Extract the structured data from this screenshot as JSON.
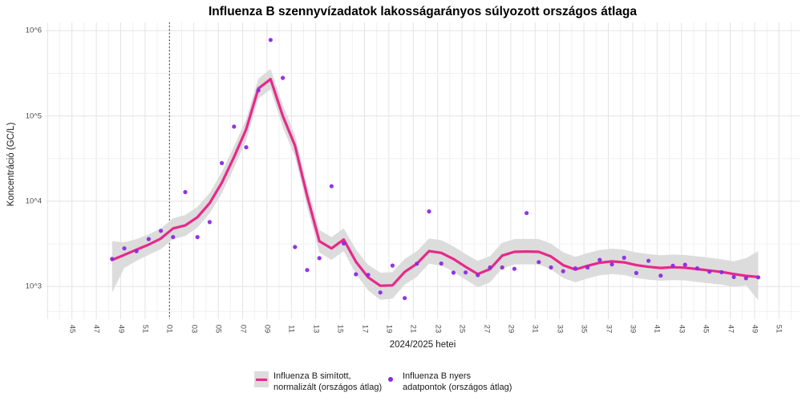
{
  "title": {
    "text": "Influenza B szennyvízadatok lakosságarányos súlyozott országos átlaga"
  },
  "axes": {
    "y_title": "Koncentráció (GC/L)",
    "x_title": "2024/2025 hetei",
    "y_tick_labels": [
      "10^6",
      "10^5",
      "10^4",
      "10^3"
    ],
    "x_tick_labels": [
      "45",
      "47",
      "49",
      "51",
      "01",
      "03",
      "05",
      "07",
      "09",
      "11",
      "13",
      "15",
      "17",
      "19",
      "21",
      "23",
      "25",
      "27",
      "29",
      "31",
      "33",
      "35",
      "37",
      "39",
      "41",
      "43",
      "45",
      "47",
      "49",
      "51"
    ]
  },
  "legend": {
    "smoothed": {
      "label": "Influenza B simított,\n normalizált (országos átlag)"
    },
    "raw": {
      "label": "Influenza B nyers\n adatpontok (országos átlag)"
    }
  },
  "colors": {
    "smoothed_line": "#E7298A",
    "ribbon": "#DCDCDC",
    "raw_point": "#8A2BE2",
    "grid_major": "#E3E3E3",
    "grid_minor": "#F0F0F0",
    "season_marker": "#111111",
    "axis_text": "#4d4d4d"
  },
  "chart_data": {
    "type": "line",
    "subtype": "smoothed line with confidence ribbon and raw scatter points",
    "y_scale": "log10",
    "ylim": [
      500,
      1100000
    ],
    "grid": "on",
    "legend_position": "bottom",
    "season_marker_week": "2025-W01",
    "xlabel": "2024/2025 hetei",
    "ylabel": "Koncentráció (GC/L)",
    "weeks": [
      "2024-W48",
      "2024-W49",
      "2024-W50",
      "2024-W51",
      "2024-W52",
      "2025-W01",
      "2025-W02",
      "2025-W03",
      "2025-W04",
      "2025-W05",
      "2025-W06",
      "2025-W07",
      "2025-W08",
      "2025-W09",
      "2025-W10",
      "2025-W11",
      "2025-W12",
      "2025-W13",
      "2025-W14",
      "2025-W15",
      "2025-W16",
      "2025-W17",
      "2025-W18",
      "2025-W19",
      "2025-W20",
      "2025-W21",
      "2025-W22",
      "2025-W23",
      "2025-W24",
      "2025-W25",
      "2025-W26",
      "2025-W27",
      "2025-W28",
      "2025-W29",
      "2025-W30",
      "2025-W31",
      "2025-W32",
      "2025-W33",
      "2025-W34",
      "2025-W35",
      "2025-W36",
      "2025-W37",
      "2025-W38",
      "2025-W39",
      "2025-W40",
      "2025-W41",
      "2025-W42",
      "2025-W43",
      "2025-W44",
      "2025-W45",
      "2025-W46",
      "2025-W47",
      "2025-W48",
      "2025-W49"
    ],
    "series": [
      {
        "name": "raw_points",
        "values": [
          2100,
          2800,
          2600,
          3600,
          4500,
          3800,
          12800,
          3800,
          5700,
          28000,
          75000,
          43000,
          200000,
          780000,
          280000,
          2900,
          1560,
          2150,
          15000,
          3200,
          1390,
          1370,
          850,
          1760,
          730,
          1850,
          7600,
          1860,
          1450,
          1460,
          1360,
          1670,
          1670,
          1610,
          7250,
          1930,
          1670,
          1510,
          1630,
          1670,
          2050,
          1820,
          2170,
          1440,
          2000,
          1340,
          1750,
          1800,
          1630,
          1490,
          1470,
          1290,
          1250,
          1280
        ]
      },
      {
        "name": "smoothed",
        "values": [
          2050,
          2350,
          2700,
          3100,
          3650,
          4800,
          5200,
          6500,
          9500,
          16500,
          33000,
          70000,
          210000,
          270000,
          100000,
          45000,
          11500,
          3400,
          2800,
          3550,
          1950,
          1280,
          1020,
          1030,
          1480,
          1850,
          2600,
          2480,
          2100,
          1700,
          1400,
          1600,
          2300,
          2550,
          2570,
          2550,
          2250,
          1780,
          1580,
          1750,
          1900,
          1970,
          1920,
          1780,
          1700,
          1650,
          1680,
          1660,
          1600,
          1540,
          1480,
          1400,
          1330,
          1290
        ]
      },
      {
        "name": "ribbon_upper",
        "values": [
          3400,
          3300,
          3600,
          4100,
          4800,
          6300,
          6900,
          8600,
          12500,
          22000,
          44000,
          92000,
          275000,
          355000,
          135000,
          60000,
          15500,
          4600,
          3800,
          4800,
          2700,
          1800,
          1450,
          1470,
          2100,
          2600,
          3650,
          3500,
          2950,
          2400,
          2000,
          2280,
          3250,
          3600,
          3630,
          3600,
          3180,
          2520,
          2230,
          2470,
          2680,
          2780,
          2710,
          2510,
          2400,
          2330,
          2370,
          2340,
          2260,
          2170,
          2090,
          1980,
          2150,
          2600
        ]
      },
      {
        "name": "ribbon_lower",
        "values": [
          850,
          1650,
          2000,
          2350,
          2750,
          3600,
          3900,
          4900,
          7200,
          12400,
          24500,
          52000,
          160000,
          205000,
          74000,
          33500,
          8600,
          2500,
          2050,
          2600,
          1400,
          900,
          700,
          720,
          1050,
          1300,
          1850,
          1760,
          1490,
          1200,
          980,
          1120,
          1630,
          1810,
          1820,
          1810,
          1590,
          1260,
          1120,
          1240,
          1350,
          1400,
          1360,
          1260,
          1200,
          1170,
          1190,
          1180,
          1130,
          1090,
          1050,
          990,
          1030,
          690
        ]
      }
    ]
  }
}
